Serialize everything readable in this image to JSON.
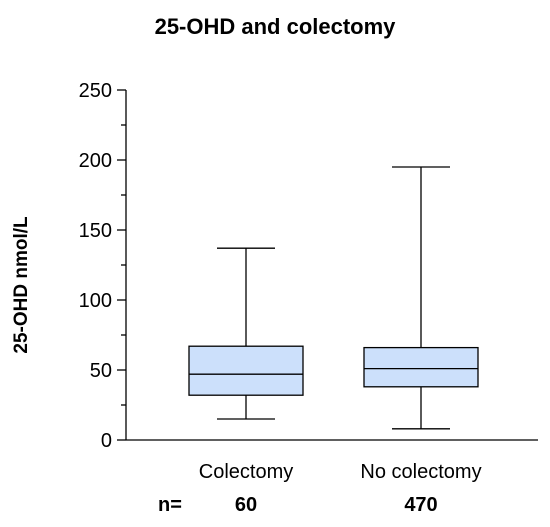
{
  "chart_data": {
    "type": "box",
    "title": "25-OHD and colectomy",
    "ylabel": "25-OHD nmol/L",
    "xlabel": "",
    "ylim": [
      0,
      250
    ],
    "yticks": [
      0,
      50,
      100,
      150,
      200,
      250
    ],
    "grid": false,
    "box_color": "#cce0fb",
    "categories": [
      "Colectomy",
      "No colectomy"
    ],
    "boxes": [
      {
        "category": "Colectomy",
        "min": 15,
        "q1": 32,
        "median": 47,
        "q3": 67,
        "max": 137
      },
      {
        "category": "No colectomy",
        "min": 8,
        "q1": 38,
        "median": 51,
        "q3": 66,
        "max": 195
      }
    ],
    "n_label": "n=",
    "n_values": [
      "60",
      "470"
    ]
  }
}
